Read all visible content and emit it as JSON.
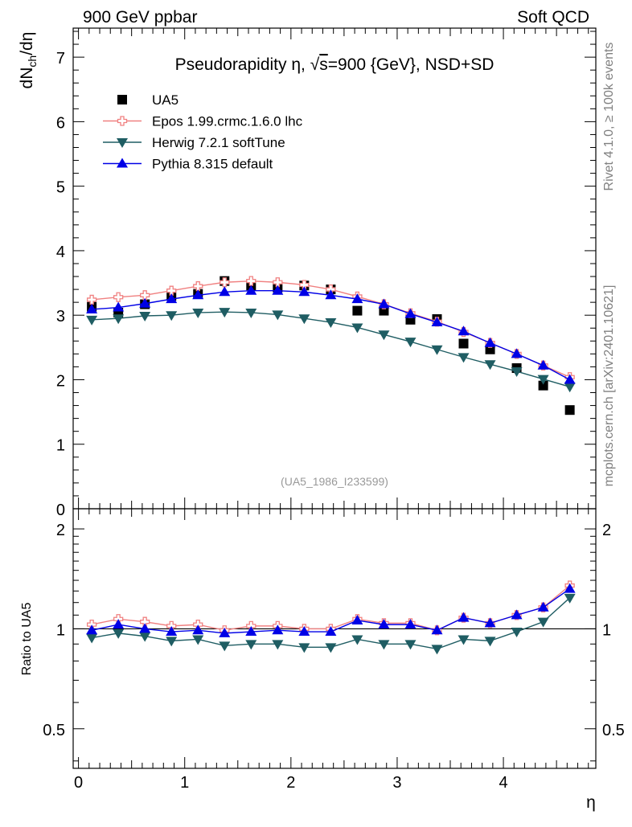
{
  "header": {
    "left": "900 GeV ppbar",
    "right": "Soft QCD"
  },
  "side_labels": {
    "rivet": "Rivet 4.1.0, ≥ 100k events",
    "mcplots": "mcplots.cern.ch [arXiv:2401.10621]"
  },
  "chart_data": {
    "type": "line",
    "title": "Pseudorapidity η, √s=900 {GeV}, NSD+SD",
    "title_parts": {
      "prefix": "Pseudorapidity ",
      "eta": "η",
      "sep": ", ",
      "root": "√",
      "s": "s",
      "suffix": "=900 {GeV}, NSD+SD"
    },
    "analysis_tag": "(UA5_1986_I233599)",
    "xlabel": "η",
    "ylabel": "dN_ch/dη",
    "ylabel_parts": {
      "main": "dN",
      "sub": "ch",
      "tail": "/dη"
    },
    "ratio_ylabel": "Ratio to UA5",
    "xlim": [
      -0.05,
      4.87
    ],
    "ylim": [
      0,
      7.45
    ],
    "ratio_ylim": [
      0.38,
      2.3
    ],
    "x_ticks": [
      0,
      1,
      2,
      3,
      4
    ],
    "x_tick_labels": [
      "0",
      "1",
      "2",
      "3",
      "4"
    ],
    "y_ticks": [
      0,
      1,
      2,
      3,
      4,
      5,
      6,
      7
    ],
    "y_tick_labels": [
      "0",
      "1",
      "2",
      "3",
      "4",
      "5",
      "6",
      "7"
    ],
    "ratio_y_ticks": [
      0.5,
      1,
      2
    ],
    "ratio_y_tick_labels": [
      "0.5",
      "1",
      "2"
    ],
    "x": [
      0.125,
      0.375,
      0.625,
      0.875,
      1.125,
      1.375,
      1.625,
      1.875,
      2.125,
      2.375,
      2.625,
      2.875,
      3.125,
      3.375,
      3.625,
      3.875,
      4.125,
      4.375,
      4.625
    ],
    "series": [
      {
        "name": "UA5",
        "marker": "square",
        "color": "#000000",
        "values": [
          3.13,
          3.04,
          3.17,
          3.3,
          3.33,
          3.53,
          3.46,
          3.43,
          3.46,
          3.4,
          3.07,
          3.07,
          2.93,
          2.94,
          2.56,
          2.47,
          2.18,
          1.91,
          1.53
        ],
        "ratio": [
          1.0,
          1.0,
          1.0,
          1.0,
          1.0,
          1.0,
          1.0,
          1.0,
          1.0,
          1.0,
          1.0,
          1.0,
          1.0,
          1.0,
          1.0,
          1.0,
          1.0,
          1.0,
          1.0
        ]
      },
      {
        "name": "Epos 1.99.crmc.1.6.0 lhc",
        "marker": "cross",
        "color": "#f08080",
        "values": [
          3.24,
          3.28,
          3.31,
          3.38,
          3.45,
          3.51,
          3.53,
          3.51,
          3.47,
          3.4,
          3.29,
          3.17,
          3.03,
          2.9,
          2.74,
          2.57,
          2.4,
          2.22,
          2.04
        ],
        "ratio": [
          1.03,
          1.07,
          1.05,
          1.02,
          1.03,
          0.99,
          1.02,
          1.02,
          1.0,
          1.0,
          1.07,
          1.04,
          1.04,
          0.99,
          1.08,
          1.04,
          1.1,
          1.16,
          1.35
        ]
      },
      {
        "name": "Herwig 7.2.1 softTune",
        "marker": "triangle-down",
        "color": "#1f5d63",
        "values": [
          2.93,
          2.95,
          2.99,
          3.0,
          3.04,
          3.05,
          3.04,
          3.01,
          2.95,
          2.89,
          2.81,
          2.7,
          2.59,
          2.47,
          2.35,
          2.24,
          2.13,
          2.01,
          1.89
        ],
        "ratio": [
          0.94,
          0.97,
          0.95,
          0.92,
          0.93,
          0.89,
          0.9,
          0.9,
          0.88,
          0.88,
          0.93,
          0.9,
          0.9,
          0.87,
          0.93,
          0.92,
          0.98,
          1.05,
          1.24
        ]
      },
      {
        "name": "Pythia 8.315 default",
        "marker": "triangle-up",
        "color": "#0000e6",
        "values": [
          3.09,
          3.12,
          3.18,
          3.25,
          3.31,
          3.36,
          3.38,
          3.38,
          3.36,
          3.31,
          3.25,
          3.17,
          3.02,
          2.89,
          2.75,
          2.57,
          2.4,
          2.22,
          2.0
        ],
        "ratio": [
          0.99,
          1.03,
          1.0,
          0.98,
          0.99,
          0.97,
          0.98,
          0.99,
          0.98,
          0.98,
          1.06,
          1.03,
          1.03,
          0.99,
          1.08,
          1.04,
          1.1,
          1.16,
          1.32
        ]
      }
    ]
  }
}
